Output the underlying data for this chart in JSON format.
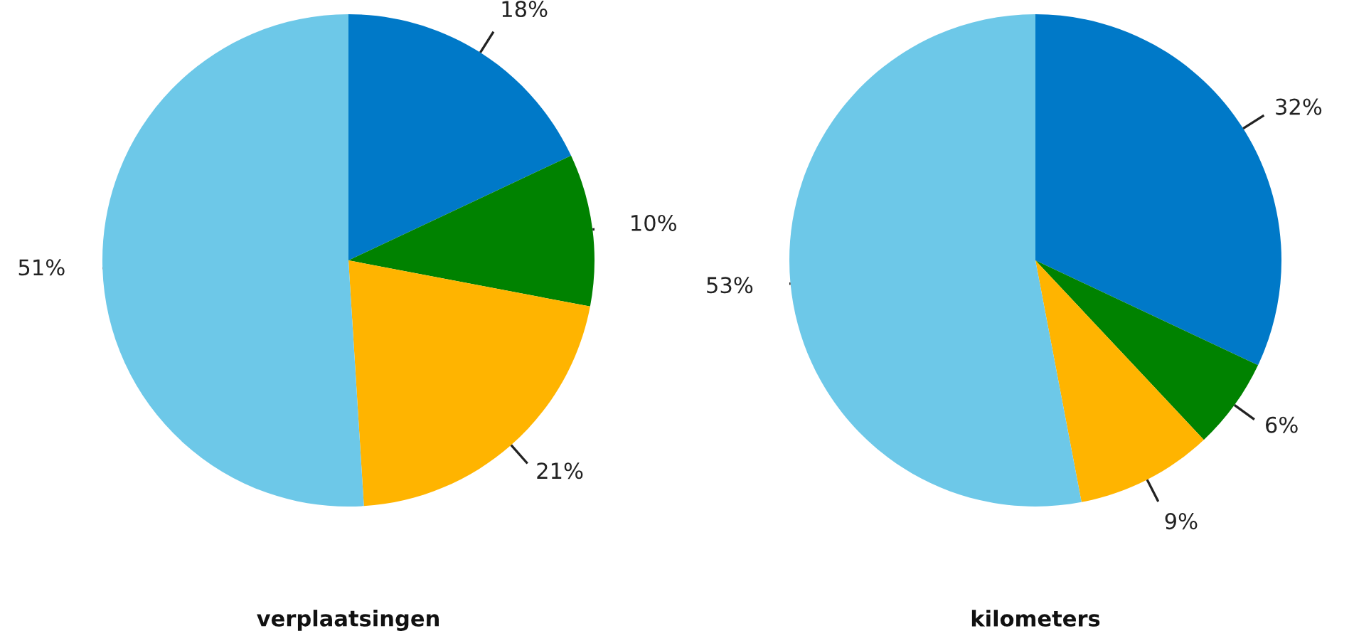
{
  "chart_data": [
    {
      "type": "pie",
      "title": "verplaatsingen",
      "categories": [
        null,
        null,
        null,
        null
      ],
      "values": [
        18,
        10,
        21,
        51
      ],
      "colors": [
        "#0079c8",
        "#008200",
        "#ffb400",
        "#6dc8e8"
      ],
      "value_labels": [
        "18%",
        "10%",
        "21%",
        "51%"
      ]
    },
    {
      "type": "pie",
      "title": "kilometers",
      "categories": [
        null,
        null,
        null,
        null
      ],
      "values": [
        32,
        6,
        9,
        53
      ],
      "colors": [
        "#0079c8",
        "#008200",
        "#ffb400",
        "#6dc8e8"
      ],
      "value_labels": [
        "32%",
        "6%",
        "9%",
        "53%"
      ]
    }
  ]
}
